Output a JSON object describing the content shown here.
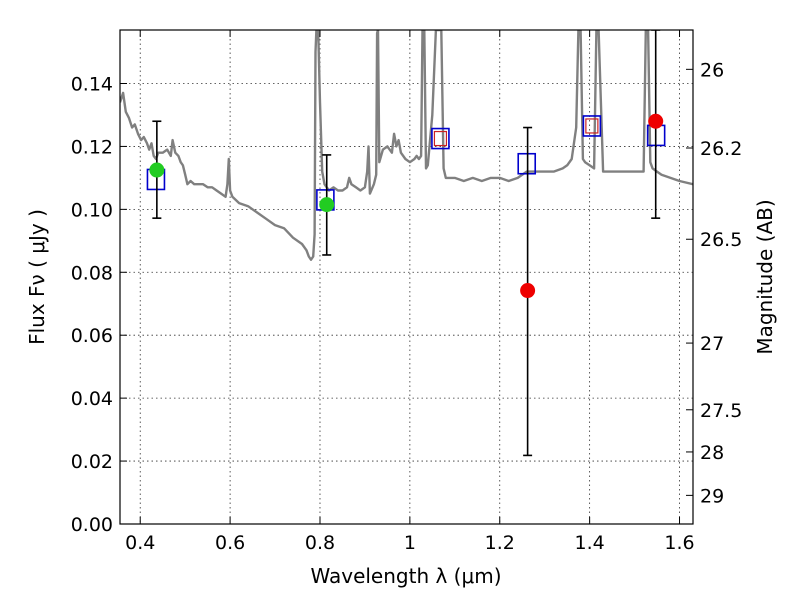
{
  "chart_data": {
    "type": "scatter",
    "title": "",
    "xlabel": "Wavelength  λ (μm)",
    "ylabel": "Flux  Fν  ( μJy )",
    "ylabel_right": "Magnitude (AB)",
    "xlim": [
      0.355,
      1.63
    ],
    "ylim": [
      0.0,
      0.157
    ],
    "grid": true,
    "x_ticks": [
      0.4,
      0.6,
      0.8,
      1.0,
      1.2,
      1.4,
      1.6
    ],
    "x_tick_labels": [
      "0.4",
      "0.6",
      "0.8",
      "1",
      "1.2",
      "1.4",
      "1.6"
    ],
    "y_ticks": [
      0.0,
      0.02,
      0.04,
      0.06,
      0.08,
      0.1,
      0.12,
      0.14
    ],
    "y_tick_labels": [
      "0.00",
      "0.02",
      "0.04",
      "0.06",
      "0.08",
      "0.10",
      "0.12",
      "0.14"
    ],
    "right_ticks": [
      {
        "flux": 0.1445,
        "label": "26"
      },
      {
        "flux": 0.1195,
        "label": "26.2"
      },
      {
        "flux": 0.0905,
        "label": "26.5"
      },
      {
        "flux": 0.0575,
        "label": "27"
      },
      {
        "flux": 0.0363,
        "label": "27.5"
      },
      {
        "flux": 0.0229,
        "label": "28"
      },
      {
        "flux": 0.0091,
        "label": "29"
      }
    ],
    "colors": {
      "template": "#808080",
      "model": "#0000cc",
      "model_inner": "#cc2222",
      "optical": "#22cc22",
      "infrared": "#ee0000",
      "errorbar": "#000000"
    },
    "template_spectrum": [
      [
        0.355,
        0.134
      ],
      [
        0.362,
        0.137
      ],
      [
        0.368,
        0.131
      ],
      [
        0.375,
        0.129
      ],
      [
        0.382,
        0.126
      ],
      [
        0.388,
        0.127
      ],
      [
        0.395,
        0.124
      ],
      [
        0.402,
        0.122
      ],
      [
        0.408,
        0.123
      ],
      [
        0.415,
        0.121
      ],
      [
        0.42,
        0.119
      ],
      [
        0.425,
        0.121
      ],
      [
        0.43,
        0.117
      ],
      [
        0.435,
        0.116
      ],
      [
        0.44,
        0.118
      ],
      [
        0.45,
        0.118
      ],
      [
        0.46,
        0.119
      ],
      [
        0.468,
        0.117
      ],
      [
        0.472,
        0.122
      ],
      [
        0.478,
        0.118
      ],
      [
        0.485,
        0.117
      ],
      [
        0.49,
        0.115
      ],
      [
        0.495,
        0.114
      ],
      [
        0.5,
        0.111
      ],
      [
        0.505,
        0.108
      ],
      [
        0.512,
        0.109
      ],
      [
        0.52,
        0.108
      ],
      [
        0.53,
        0.108
      ],
      [
        0.54,
        0.108
      ],
      [
        0.55,
        0.107
      ],
      [
        0.56,
        0.107
      ],
      [
        0.57,
        0.106
      ],
      [
        0.58,
        0.105
      ],
      [
        0.59,
        0.104
      ],
      [
        0.594,
        0.108
      ],
      [
        0.597,
        0.116
      ],
      [
        0.6,
        0.106
      ],
      [
        0.605,
        0.104
      ],
      [
        0.62,
        0.102
      ],
      [
        0.64,
        0.101
      ],
      [
        0.66,
        0.099
      ],
      [
        0.68,
        0.097
      ],
      [
        0.7,
        0.095
      ],
      [
        0.72,
        0.094
      ],
      [
        0.74,
        0.091
      ],
      [
        0.76,
        0.089
      ],
      [
        0.77,
        0.087
      ],
      [
        0.775,
        0.085
      ],
      [
        0.78,
        0.084
      ],
      [
        0.785,
        0.085
      ],
      [
        0.788,
        0.092
      ],
      [
        0.79,
        0.15
      ],
      [
        0.792,
        0.157
      ],
      [
        0.796,
        0.157
      ],
      [
        0.8,
        0.134
      ],
      [
        0.805,
        0.112
      ],
      [
        0.81,
        0.108
      ],
      [
        0.82,
        0.106
      ],
      [
        0.83,
        0.107
      ],
      [
        0.84,
        0.106
      ],
      [
        0.85,
        0.106
      ],
      [
        0.86,
        0.107
      ],
      [
        0.865,
        0.11
      ],
      [
        0.87,
        0.108
      ],
      [
        0.88,
        0.107
      ],
      [
        0.89,
        0.106
      ],
      [
        0.9,
        0.107
      ],
      [
        0.905,
        0.112
      ],
      [
        0.908,
        0.12
      ],
      [
        0.911,
        0.105
      ],
      [
        0.92,
        0.108
      ],
      [
        0.925,
        0.111
      ],
      [
        0.927,
        0.156
      ],
      [
        0.929,
        0.157
      ],
      [
        0.932,
        0.115
      ],
      [
        0.94,
        0.119
      ],
      [
        0.95,
        0.12
      ],
      [
        0.96,
        0.118
      ],
      [
        0.965,
        0.124
      ],
      [
        0.97,
        0.12
      ],
      [
        0.975,
        0.122
      ],
      [
        0.98,
        0.118
      ],
      [
        0.99,
        0.116
      ],
      [
        1.0,
        0.115
      ],
      [
        1.01,
        0.116
      ],
      [
        1.015,
        0.117
      ],
      [
        1.02,
        0.116
      ],
      [
        1.025,
        0.117
      ],
      [
        1.028,
        0.157
      ],
      [
        1.032,
        0.157
      ],
      [
        1.036,
        0.113
      ],
      [
        1.04,
        0.114
      ],
      [
        1.05,
        0.13
      ],
      [
        1.058,
        0.157
      ],
      [
        1.063,
        0.157
      ],
      [
        1.07,
        0.157
      ],
      [
        1.075,
        0.113
      ],
      [
        1.08,
        0.11
      ],
      [
        1.1,
        0.11
      ],
      [
        1.12,
        0.109
      ],
      [
        1.14,
        0.11
      ],
      [
        1.16,
        0.109
      ],
      [
        1.18,
        0.11
      ],
      [
        1.2,
        0.11
      ],
      [
        1.22,
        0.109
      ],
      [
        1.24,
        0.11
      ],
      [
        1.26,
        0.112
      ],
      [
        1.28,
        0.112
      ],
      [
        1.3,
        0.112
      ],
      [
        1.32,
        0.112
      ],
      [
        1.34,
        0.113
      ],
      [
        1.35,
        0.114
      ],
      [
        1.36,
        0.116
      ],
      [
        1.37,
        0.126
      ],
      [
        1.375,
        0.157
      ],
      [
        1.38,
        0.157
      ],
      [
        1.385,
        0.116
      ],
      [
        1.39,
        0.115
      ],
      [
        1.4,
        0.114
      ],
      [
        1.41,
        0.113
      ],
      [
        1.415,
        0.157
      ],
      [
        1.42,
        0.157
      ],
      [
        1.43,
        0.112
      ],
      [
        1.45,
        0.112
      ],
      [
        1.5,
        0.112
      ],
      [
        1.52,
        0.112
      ],
      [
        1.525,
        0.157
      ],
      [
        1.53,
        0.157
      ],
      [
        1.535,
        0.115
      ],
      [
        1.54,
        0.113
      ],
      [
        1.55,
        0.112
      ],
      [
        1.56,
        0.111
      ],
      [
        1.58,
        0.11
      ],
      [
        1.6,
        0.109
      ],
      [
        1.63,
        0.108
      ]
    ],
    "model_points": [
      {
        "x": 0.435,
        "y": 0.1095,
        "inner": false
      },
      {
        "x": 0.812,
        "y": 0.103,
        "inner": false
      },
      {
        "x": 1.068,
        "y": 0.1225,
        "inner": true
      },
      {
        "x": 1.26,
        "y": 0.1145,
        "inner": false
      },
      {
        "x": 1.405,
        "y": 0.1265,
        "inner": true
      },
      {
        "x": 1.548,
        "y": 0.1235,
        "inner": false
      }
    ],
    "observed_points": [
      {
        "x": 0.437,
        "y": 0.1125,
        "err_low": 0.0972,
        "err_high": 0.128,
        "group": "optical"
      },
      {
        "x": 0.815,
        "y": 0.1015,
        "err_low": 0.0855,
        "err_high": 0.1173,
        "group": "optical"
      },
      {
        "x": 1.262,
        "y": 0.0742,
        "err_low": 0.0218,
        "err_high": 0.126,
        "group": "infrared"
      },
      {
        "x": 1.547,
        "y": 0.128,
        "err_low": 0.0972,
        "err_high": 0.157,
        "group": "infrared"
      }
    ]
  }
}
